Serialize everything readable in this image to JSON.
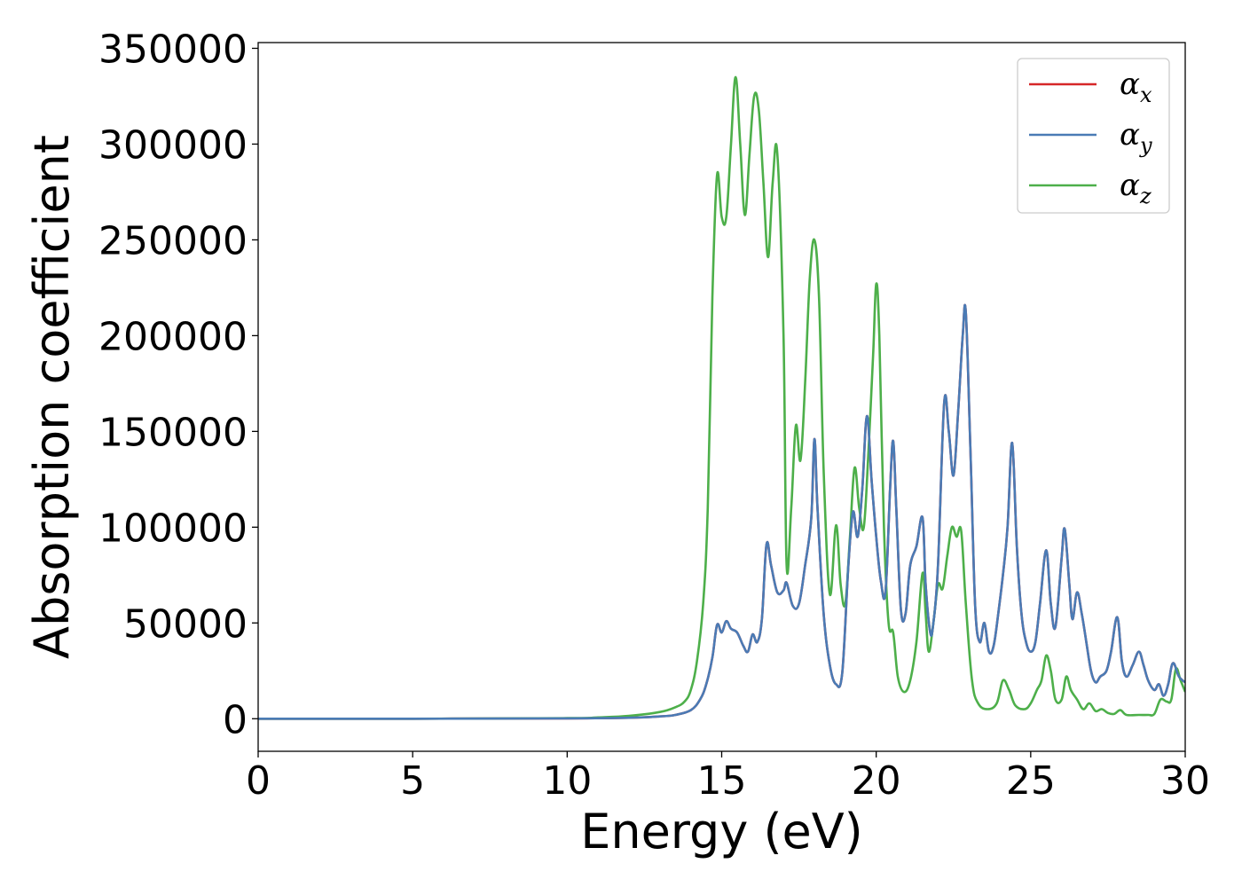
{
  "chart_data": {
    "type": "line",
    "xlabel": "Energy (eV)",
    "ylabel": "Absorption coefficient",
    "xlim": [
      0,
      30
    ],
    "ylim": [
      -17000,
      353000
    ],
    "xticks": [
      0,
      5,
      10,
      15,
      20,
      25,
      30
    ],
    "xtick_labels": [
      "0",
      "5",
      "10",
      "15",
      "20",
      "25",
      "30"
    ],
    "yticks": [
      0,
      50000,
      100000,
      150000,
      200000,
      250000,
      300000,
      350000
    ],
    "ytick_labels": [
      "0",
      "50000",
      "100000",
      "150000",
      "200000",
      "250000",
      "300000",
      "350000"
    ],
    "grid": false,
    "legend_position": "top-right",
    "series": [
      {
        "name": "α_x",
        "label_main": "α",
        "label_sub": "x",
        "color": "#d62728",
        "x": [
          0,
          5,
          10,
          12,
          13,
          13.5,
          14,
          14.3,
          14.5,
          14.7,
          14.85,
          15.0,
          15.15,
          15.3,
          15.5,
          15.7,
          15.85,
          16.0,
          16.15,
          16.3,
          16.45,
          16.6,
          16.8,
          17.0,
          17.1,
          17.3,
          17.5,
          17.7,
          17.9,
          18.0,
          18.1,
          18.3,
          18.5,
          18.7,
          18.9,
          19.1,
          19.25,
          19.4,
          19.55,
          19.7,
          19.85,
          20.0,
          20.15,
          20.3,
          20.45,
          20.55,
          20.65,
          20.8,
          20.95,
          21.1,
          21.3,
          21.5,
          21.6,
          21.75,
          21.85,
          22.0,
          22.2,
          22.35,
          22.5,
          22.65,
          22.8,
          22.9,
          23.05,
          23.2,
          23.35,
          23.5,
          23.65,
          23.8,
          23.95,
          24.1,
          24.25,
          24.4,
          24.55,
          24.7,
          24.85,
          25.0,
          25.15,
          25.3,
          25.5,
          25.65,
          25.8,
          26.0,
          26.1,
          26.25,
          26.35,
          26.5,
          26.65,
          26.8,
          26.95,
          27.1,
          27.25,
          27.45,
          27.6,
          27.8,
          27.95,
          28.1,
          28.3,
          28.5,
          28.65,
          28.8,
          29.0,
          29.15,
          29.3,
          29.45,
          29.6,
          29.8,
          30.0
        ],
        "values": [
          0,
          0,
          200,
          500,
          1200,
          2000,
          4500,
          10000,
          18000,
          32000,
          49000,
          45000,
          51000,
          47000,
          45000,
          38000,
          35000,
          44000,
          40000,
          52000,
          91000,
          80000,
          66000,
          67000,
          71000,
          59000,
          60000,
          80000,
          105000,
          146000,
          110000,
          55000,
          28000,
          18000,
          24000,
          80000,
          108000,
          95000,
          120000,
          158000,
          125000,
          95000,
          72000,
          66000,
          120000,
          145000,
          110000,
          57000,
          55000,
          80000,
          90000,
          105000,
          70000,
          45000,
          50000,
          80000,
          165000,
          150000,
          127000,
          160000,
          200000,
          212000,
          140000,
          60000,
          40000,
          50000,
          35000,
          38000,
          55000,
          75000,
          100000,
          144000,
          90000,
          55000,
          40000,
          35000,
          40000,
          60000,
          88000,
          60000,
          48000,
          84000,
          99000,
          70000,
          52000,
          66000,
          55000,
          40000,
          25000,
          19000,
          22000,
          25000,
          35000,
          53000,
          30000,
          22000,
          28000,
          35000,
          28000,
          20000,
          15000,
          18000,
          12000,
          18000,
          29000,
          22000,
          19000
        ]
      },
      {
        "name": "α_y",
        "label_main": "α",
        "label_sub": "y",
        "color": "#4a7bb5",
        "x": [
          0,
          5,
          10,
          12,
          13,
          13.5,
          14,
          14.3,
          14.5,
          14.7,
          14.85,
          15.0,
          15.15,
          15.3,
          15.5,
          15.7,
          15.85,
          16.0,
          16.15,
          16.3,
          16.45,
          16.6,
          16.8,
          17.0,
          17.1,
          17.3,
          17.5,
          17.7,
          17.9,
          18.0,
          18.1,
          18.3,
          18.5,
          18.7,
          18.9,
          19.1,
          19.25,
          19.4,
          19.55,
          19.7,
          19.85,
          20.0,
          20.15,
          20.3,
          20.45,
          20.55,
          20.65,
          20.8,
          20.95,
          21.1,
          21.3,
          21.5,
          21.6,
          21.75,
          21.85,
          22.0,
          22.2,
          22.35,
          22.5,
          22.65,
          22.8,
          22.9,
          23.05,
          23.2,
          23.35,
          23.5,
          23.65,
          23.8,
          23.95,
          24.1,
          24.25,
          24.4,
          24.55,
          24.7,
          24.85,
          25.0,
          25.15,
          25.3,
          25.5,
          25.65,
          25.8,
          26.0,
          26.1,
          26.25,
          26.35,
          26.5,
          26.65,
          26.8,
          26.95,
          27.1,
          27.25,
          27.45,
          27.6,
          27.8,
          27.95,
          28.1,
          28.3,
          28.5,
          28.65,
          28.8,
          29.0,
          29.15,
          29.3,
          29.45,
          29.6,
          29.8,
          30.0
        ],
        "values": [
          0,
          0,
          200,
          500,
          1200,
          2000,
          4500,
          10000,
          18000,
          32000,
          49000,
          45000,
          51000,
          47000,
          45000,
          38000,
          35000,
          44000,
          40000,
          52000,
          91000,
          80000,
          66000,
          67000,
          71000,
          59000,
          60000,
          80000,
          105000,
          146000,
          110000,
          55000,
          28000,
          18000,
          24000,
          80000,
          108000,
          95000,
          120000,
          158000,
          125000,
          95000,
          72000,
          66000,
          120000,
          145000,
          110000,
          57000,
          55000,
          80000,
          90000,
          105000,
          70000,
          45000,
          50000,
          80000,
          165000,
          150000,
          127000,
          160000,
          200000,
          212000,
          140000,
          60000,
          40000,
          50000,
          35000,
          38000,
          55000,
          75000,
          100000,
          144000,
          90000,
          55000,
          40000,
          35000,
          40000,
          60000,
          88000,
          60000,
          48000,
          84000,
          99000,
          70000,
          52000,
          66000,
          55000,
          40000,
          25000,
          19000,
          22000,
          25000,
          35000,
          53000,
          30000,
          22000,
          28000,
          35000,
          28000,
          20000,
          15000,
          18000,
          12000,
          18000,
          29000,
          22000,
          19000
        ]
      },
      {
        "name": "α_z",
        "label_main": "α",
        "label_sub": "z",
        "color": "#4daf4a",
        "x": [
          0,
          5,
          10,
          11,
          12,
          13,
          13.5,
          13.8,
          14.0,
          14.2,
          14.4,
          14.55,
          14.7,
          14.85,
          15.0,
          15.15,
          15.3,
          15.45,
          15.6,
          15.75,
          15.9,
          16.05,
          16.2,
          16.35,
          16.5,
          16.65,
          16.8,
          17.0,
          17.1,
          17.25,
          17.4,
          17.55,
          17.7,
          17.85,
          18.0,
          18.15,
          18.3,
          18.5,
          18.7,
          18.85,
          19.0,
          19.15,
          19.3,
          19.45,
          19.6,
          19.75,
          19.9,
          20.0,
          20.1,
          20.25,
          20.4,
          20.55,
          20.7,
          20.9,
          21.1,
          21.3,
          21.5,
          21.6,
          21.7,
          21.85,
          22.0,
          22.15,
          22.3,
          22.45,
          22.6,
          22.75,
          22.9,
          23.1,
          23.3,
          23.6,
          23.9,
          24.1,
          24.3,
          24.5,
          24.8,
          25.0,
          25.2,
          25.35,
          25.5,
          25.65,
          25.8,
          26.0,
          26.15,
          26.3,
          26.5,
          26.7,
          26.9,
          27.1,
          27.3,
          27.5,
          27.7,
          27.9,
          28.1,
          28.5,
          28.8,
          29.0,
          29.2,
          29.4,
          29.55,
          29.7,
          29.85,
          30.0
        ],
        "values": [
          0,
          0,
          300,
          700,
          1500,
          3500,
          6000,
          9000,
          15000,
          30000,
          60000,
          110000,
          220000,
          284000,
          262000,
          262000,
          300000,
          335000,
          300000,
          263000,
          295000,
          325000,
          318000,
          280000,
          241000,
          280000,
          295000,
          200000,
          80000,
          110000,
          153000,
          135000,
          175000,
          230000,
          250000,
          220000,
          130000,
          65000,
          101000,
          70000,
          60000,
          95000,
          131000,
          110000,
          100000,
          140000,
          190000,
          227000,
          200000,
          100000,
          50000,
          45000,
          22000,
          14000,
          20000,
          40000,
          76000,
          55000,
          35000,
          50000,
          70000,
          68000,
          85000,
          100000,
          95000,
          98000,
          60000,
          20000,
          8000,
          5000,
          8000,
          20000,
          15000,
          7000,
          5000,
          8000,
          15000,
          20000,
          33000,
          25000,
          10000,
          10000,
          22000,
          15000,
          10000,
          5000,
          8000,
          4000,
          5000,
          3000,
          2500,
          4500,
          2000,
          2000,
          2000,
          2500,
          10000,
          9000,
          10000,
          26000,
          20000,
          14000
        ]
      }
    ]
  }
}
